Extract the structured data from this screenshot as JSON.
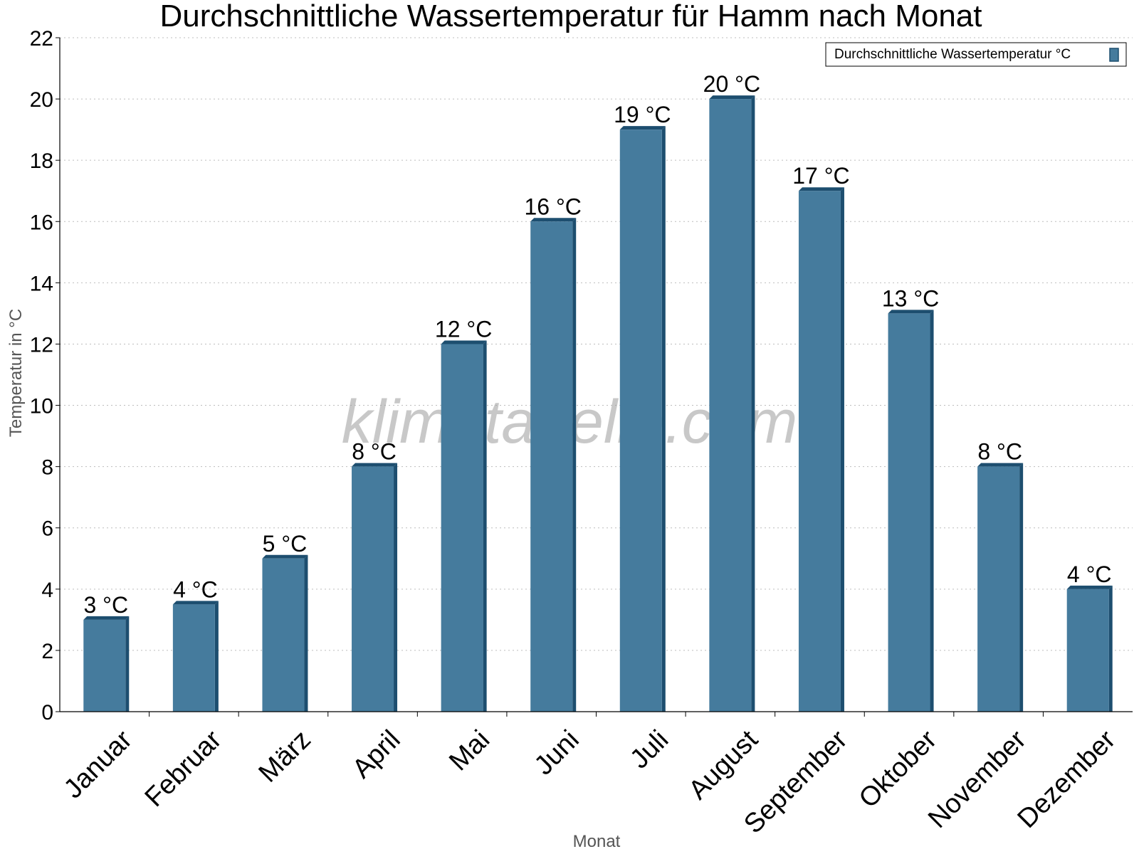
{
  "chart_data": {
    "type": "bar",
    "title": "Durchschnittliche Wassertemperatur für Hamm nach Monat",
    "xlabel": "Monat",
    "ylabel": "Temperatur in °C",
    "ylim": [
      0,
      22
    ],
    "yticks": [
      0,
      2,
      4,
      6,
      8,
      10,
      12,
      14,
      16,
      18,
      20,
      22
    ],
    "grid": true,
    "legend_position": "top-right",
    "categories": [
      "Januar",
      "Februar",
      "März",
      "April",
      "Mai",
      "Juni",
      "Juli",
      "August",
      "September",
      "Oktober",
      "November",
      "Dezember"
    ],
    "series": [
      {
        "name": "Durchschnittliche Wassertemperatur °C",
        "values": [
          3,
          3.5,
          5,
          8,
          12,
          16,
          19,
          20,
          17,
          13,
          8,
          4
        ],
        "data_labels": [
          "3 °C",
          "4 °C",
          "5 °C",
          "8 °C",
          "12 °C",
          "16 °C",
          "19 °C",
          "20 °C",
          "17 °C",
          "13 °C",
          "8 °C",
          "4 °C"
        ],
        "color": "#457b9d",
        "edge_color": "#1d4e6f"
      }
    ],
    "watermark": "klimatabelle.com"
  }
}
